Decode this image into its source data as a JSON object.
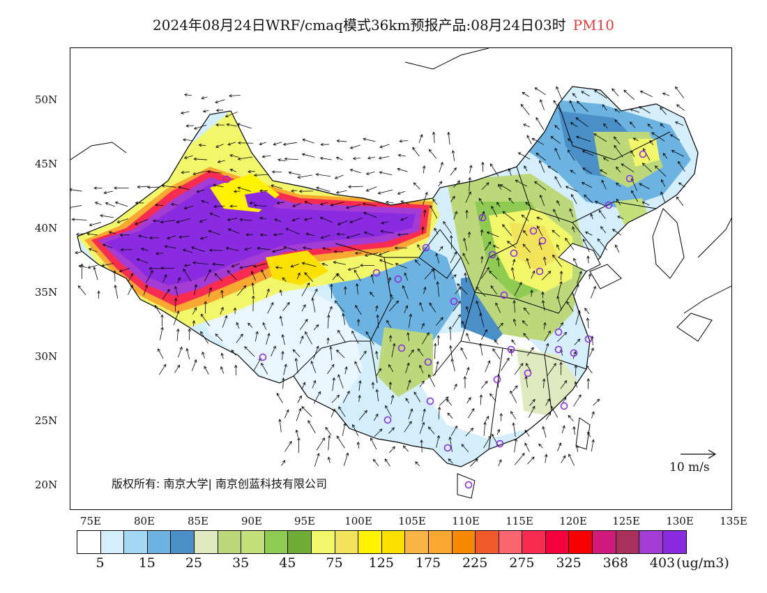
{
  "title": {
    "main": "2024年08月24日WRF/cmaq模式36km预报产品:08月24日03时",
    "pollutant": "PM10",
    "pollutant_color": "#e8383b"
  },
  "axes": {
    "lat_labels": [
      "50N",
      "45N",
      "40N",
      "35N",
      "30N",
      "25N",
      "20N"
    ],
    "lon_labels": [
      "75E",
      "80E",
      "85E",
      "90E",
      "95E",
      "100E",
      "105E",
      "110E",
      "115E",
      "120E",
      "125E",
      "130E",
      "135E"
    ]
  },
  "colorbar": {
    "colors": [
      "#ffffff",
      "#d4eefb",
      "#a2d8f4",
      "#6cb3e1",
      "#4a8fc8",
      "#dfeac0",
      "#bcd87a",
      "#c4e07a",
      "#8fcb52",
      "#6fac38",
      "#f2f76a",
      "#f2e45a",
      "#fff200",
      "#fbe100",
      "#f8b445",
      "#f8a830",
      "#f88a00",
      "#f05a2a",
      "#fb6670",
      "#f72c50",
      "#f5003c",
      "#f60000",
      "#d01a7c",
      "#a8305a",
      "#a33bd4",
      "#8a2be2"
    ],
    "labels": [
      "5",
      "15",
      "25",
      "35",
      "45",
      "75",
      "125",
      "175",
      "225",
      "275",
      "325",
      "368",
      "403"
    ],
    "unit": "(ug/m3)"
  },
  "copyright": "版权所有: 南京大学| 南京创蓝科技有限公司",
  "wind_reference": "10 m/s",
  "icons": {
    "station_marker": "station-circle-icon",
    "wind_arrow": "wind-arrow-icon",
    "station_marker_color": "#8a2be2"
  }
}
